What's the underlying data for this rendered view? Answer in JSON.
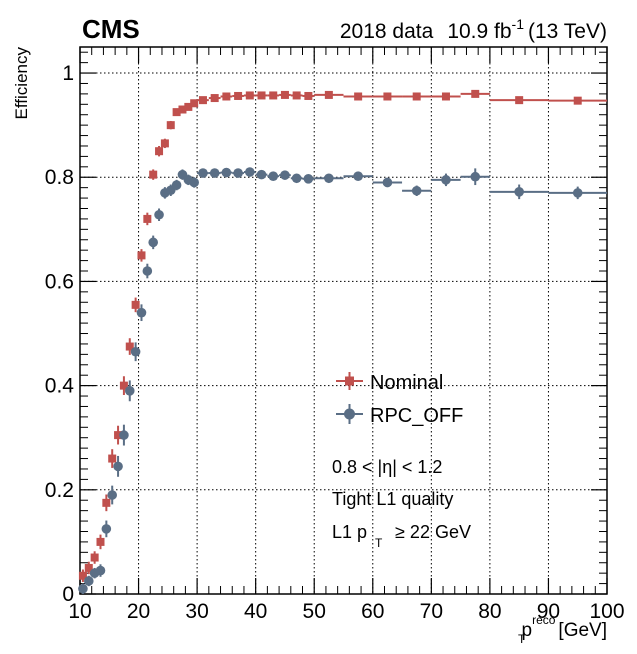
{
  "header": {
    "experiment": "CMS",
    "dataset": "2018 data",
    "lumi_value": "10.9 fb",
    "lumi_exp": "-1",
    "energy": "(13 TeV)"
  },
  "annotations": {
    "eta_range": "0.8 < |η| < 1.2",
    "quality": "Tight L1 quality",
    "l1_pt_pre": "L1 p",
    "l1_pt_sub": "T",
    "l1_pt_post": "≥ 22 GeV"
  },
  "chart_data": {
    "type": "scatter",
    "title": "",
    "ylabel": "Efficiency",
    "xlabel_main": "p",
    "xlabel_sub": "T",
    "xlabel_sup": "reco",
    "xlabel_unit": "[GeV]",
    "xlim": [
      10,
      100
    ],
    "ylim": [
      0,
      1.05
    ],
    "grid": true,
    "legend_position": "center-right",
    "x_ticks": [
      10,
      20,
      30,
      40,
      50,
      60,
      70,
      80,
      90,
      100
    ],
    "y_ticks": [
      0,
      0.2,
      0.4,
      0.6,
      0.8,
      1
    ],
    "series": [
      {
        "name": "Nominal",
        "color": "#c0504d",
        "marker": "square",
        "points": [
          {
            "x": 10.5,
            "y": 0.035,
            "xerr": 0.5,
            "yerr": 0.012
          },
          {
            "x": 11.5,
            "y": 0.05,
            "xerr": 0.5,
            "yerr": 0.012
          },
          {
            "x": 12.5,
            "y": 0.07,
            "xerr": 0.5,
            "yerr": 0.012
          },
          {
            "x": 13.5,
            "y": 0.1,
            "xerr": 0.5,
            "yerr": 0.014
          },
          {
            "x": 14.5,
            "y": 0.175,
            "xerr": 0.5,
            "yerr": 0.016
          },
          {
            "x": 15.5,
            "y": 0.26,
            "xerr": 0.5,
            "yerr": 0.018
          },
          {
            "x": 16.5,
            "y": 0.305,
            "xerr": 0.5,
            "yerr": 0.018
          },
          {
            "x": 17.5,
            "y": 0.4,
            "xerr": 0.5,
            "yerr": 0.018
          },
          {
            "x": 18.5,
            "y": 0.475,
            "xerr": 0.5,
            "yerr": 0.016
          },
          {
            "x": 19.5,
            "y": 0.555,
            "xerr": 0.5,
            "yerr": 0.014
          },
          {
            "x": 20.5,
            "y": 0.65,
            "xerr": 0.5,
            "yerr": 0.012
          },
          {
            "x": 21.5,
            "y": 0.72,
            "xerr": 0.5,
            "yerr": 0.012
          },
          {
            "x": 22.5,
            "y": 0.805,
            "xerr": 0.5,
            "yerr": 0.01
          },
          {
            "x": 23.5,
            "y": 0.85,
            "xerr": 0.5,
            "yerr": 0.01
          },
          {
            "x": 24.5,
            "y": 0.865,
            "xerr": 0.5,
            "yerr": 0.009
          },
          {
            "x": 25.5,
            "y": 0.9,
            "xerr": 0.5,
            "yerr": 0.008
          },
          {
            "x": 26.5,
            "y": 0.925,
            "xerr": 0.5,
            "yerr": 0.007
          },
          {
            "x": 27.5,
            "y": 0.93,
            "xerr": 0.5,
            "yerr": 0.007
          },
          {
            "x": 28.5,
            "y": 0.935,
            "xerr": 0.5,
            "yerr": 0.006
          },
          {
            "x": 29.5,
            "y": 0.942,
            "xerr": 0.5,
            "yerr": 0.006
          },
          {
            "x": 31,
            "y": 0.948,
            "xerr": 1,
            "yerr": 0.005
          },
          {
            "x": 33,
            "y": 0.952,
            "xerr": 1,
            "yerr": 0.005
          },
          {
            "x": 35,
            "y": 0.955,
            "xerr": 1,
            "yerr": 0.005
          },
          {
            "x": 37,
            "y": 0.956,
            "xerr": 1,
            "yerr": 0.005
          },
          {
            "x": 39,
            "y": 0.957,
            "xerr": 1,
            "yerr": 0.005
          },
          {
            "x": 41,
            "y": 0.957,
            "xerr": 1,
            "yerr": 0.005
          },
          {
            "x": 43,
            "y": 0.957,
            "xerr": 1,
            "yerr": 0.005
          },
          {
            "x": 45,
            "y": 0.958,
            "xerr": 1,
            "yerr": 0.005
          },
          {
            "x": 47,
            "y": 0.957,
            "xerr": 1,
            "yerr": 0.005
          },
          {
            "x": 49,
            "y": 0.956,
            "xerr": 1,
            "yerr": 0.005
          },
          {
            "x": 52.5,
            "y": 0.958,
            "xerr": 2.5,
            "yerr": 0.005
          },
          {
            "x": 57.5,
            "y": 0.955,
            "xerr": 2.5,
            "yerr": 0.005
          },
          {
            "x": 62.5,
            "y": 0.955,
            "xerr": 2.5,
            "yerr": 0.005
          },
          {
            "x": 67.5,
            "y": 0.955,
            "xerr": 2.5,
            "yerr": 0.005
          },
          {
            "x": 72.5,
            "y": 0.955,
            "xerr": 2.5,
            "yerr": 0.006
          },
          {
            "x": 77.5,
            "y": 0.96,
            "xerr": 2.5,
            "yerr": 0.006
          },
          {
            "x": 85,
            "y": 0.948,
            "xerr": 5,
            "yerr": 0.007
          },
          {
            "x": 95,
            "y": 0.947,
            "xerr": 5,
            "yerr": 0.007
          }
        ]
      },
      {
        "name": "RPC_OFF",
        "color": "#5a6e85",
        "marker": "circle",
        "points": [
          {
            "x": 10.5,
            "y": 0.01,
            "xerr": 0.5,
            "yerr": 0.01
          },
          {
            "x": 11.5,
            "y": 0.025,
            "xerr": 0.5,
            "yerr": 0.01
          },
          {
            "x": 12.5,
            "y": 0.04,
            "xerr": 0.5,
            "yerr": 0.01
          },
          {
            "x": 13.5,
            "y": 0.045,
            "xerr": 0.5,
            "yerr": 0.012
          },
          {
            "x": 14.5,
            "y": 0.125,
            "xerr": 0.5,
            "yerr": 0.016
          },
          {
            "x": 15.5,
            "y": 0.19,
            "xerr": 0.5,
            "yerr": 0.018
          },
          {
            "x": 16.5,
            "y": 0.245,
            "xerr": 0.5,
            "yerr": 0.02
          },
          {
            "x": 17.5,
            "y": 0.305,
            "xerr": 0.5,
            "yerr": 0.02
          },
          {
            "x": 18.5,
            "y": 0.39,
            "xerr": 0.5,
            "yerr": 0.02
          },
          {
            "x": 19.5,
            "y": 0.465,
            "xerr": 0.5,
            "yerr": 0.018
          },
          {
            "x": 20.5,
            "y": 0.54,
            "xerr": 0.5,
            "yerr": 0.016
          },
          {
            "x": 21.5,
            "y": 0.62,
            "xerr": 0.5,
            "yerr": 0.014
          },
          {
            "x": 22.5,
            "y": 0.675,
            "xerr": 0.5,
            "yerr": 0.013
          },
          {
            "x": 23.5,
            "y": 0.728,
            "xerr": 0.5,
            "yerr": 0.012
          },
          {
            "x": 24.5,
            "y": 0.77,
            "xerr": 0.5,
            "yerr": 0.011
          },
          {
            "x": 25.5,
            "y": 0.775,
            "xerr": 0.5,
            "yerr": 0.011
          },
          {
            "x": 26.5,
            "y": 0.785,
            "xerr": 0.5,
            "yerr": 0.01
          },
          {
            "x": 27.5,
            "y": 0.805,
            "xerr": 0.5,
            "yerr": 0.01
          },
          {
            "x": 28.5,
            "y": 0.795,
            "xerr": 0.5,
            "yerr": 0.01
          },
          {
            "x": 29.5,
            "y": 0.79,
            "xerr": 0.5,
            "yerr": 0.01
          },
          {
            "x": 31,
            "y": 0.808,
            "xerr": 1,
            "yerr": 0.008
          },
          {
            "x": 33,
            "y": 0.808,
            "xerr": 1,
            "yerr": 0.008
          },
          {
            "x": 35,
            "y": 0.809,
            "xerr": 1,
            "yerr": 0.008
          },
          {
            "x": 37,
            "y": 0.808,
            "xerr": 1,
            "yerr": 0.008
          },
          {
            "x": 39,
            "y": 0.81,
            "xerr": 1,
            "yerr": 0.008
          },
          {
            "x": 41,
            "y": 0.805,
            "xerr": 1,
            "yerr": 0.008
          },
          {
            "x": 43,
            "y": 0.802,
            "xerr": 1,
            "yerr": 0.008
          },
          {
            "x": 45,
            "y": 0.804,
            "xerr": 1,
            "yerr": 0.008
          },
          {
            "x": 47,
            "y": 0.798,
            "xerr": 1,
            "yerr": 0.008
          },
          {
            "x": 49,
            "y": 0.797,
            "xerr": 1,
            "yerr": 0.008
          },
          {
            "x": 52.5,
            "y": 0.798,
            "xerr": 2.5,
            "yerr": 0.008
          },
          {
            "x": 57.5,
            "y": 0.802,
            "xerr": 2.5,
            "yerr": 0.008
          },
          {
            "x": 62.5,
            "y": 0.79,
            "xerr": 2.5,
            "yerr": 0.009
          },
          {
            "x": 67.5,
            "y": 0.774,
            "xerr": 2.5,
            "yerr": 0.01
          },
          {
            "x": 72.5,
            "y": 0.795,
            "xerr": 2.5,
            "yerr": 0.012
          },
          {
            "x": 77.5,
            "y": 0.801,
            "xerr": 2.5,
            "yerr": 0.016
          },
          {
            "x": 85,
            "y": 0.772,
            "xerr": 5,
            "yerr": 0.014
          },
          {
            "x": 95,
            "y": 0.77,
            "xerr": 5,
            "yerr": 0.012
          }
        ]
      }
    ]
  }
}
